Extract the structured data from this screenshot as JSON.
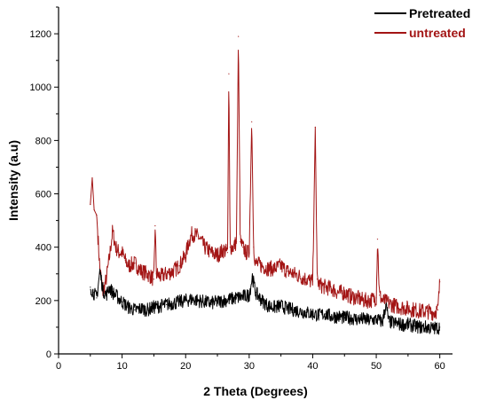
{
  "chart_data": {
    "type": "line",
    "xlabel": "2 Theta (Degrees)",
    "ylabel": "Intensity (a.u)",
    "xlim": [
      0,
      62
    ],
    "ylim": [
      0,
      1300
    ],
    "xticks": [
      0,
      10,
      20,
      30,
      40,
      50,
      60
    ],
    "yticks": [
      0,
      200,
      400,
      600,
      800,
      1000,
      1200
    ],
    "grid": false,
    "legend_position": "top-right",
    "series": [
      {
        "name": "Pretreated",
        "color": "#000000",
        "points": [
          [
            5,
            250
          ],
          [
            5.5,
            230
          ],
          [
            6,
            210
          ],
          [
            6.5,
            310
          ],
          [
            7,
            240
          ],
          [
            7.5,
            220
          ],
          [
            8,
            250
          ],
          [
            8.5,
            230
          ],
          [
            9,
            220
          ],
          [
            10,
            195
          ],
          [
            11,
            175
          ],
          [
            12,
            165
          ],
          [
            13,
            170
          ],
          [
            14,
            165
          ],
          [
            15,
            175
          ],
          [
            16,
            180
          ],
          [
            17,
            185
          ],
          [
            18,
            190
          ],
          [
            19,
            195
          ],
          [
            20,
            200
          ],
          [
            21,
            205
          ],
          [
            22,
            200
          ],
          [
            23,
            195
          ],
          [
            24,
            190
          ],
          [
            25,
            195
          ],
          [
            26,
            200
          ],
          [
            27,
            205
          ],
          [
            28,
            210
          ],
          [
            29,
            215
          ],
          [
            30,
            220
          ],
          [
            30.5,
            290
          ],
          [
            31,
            230
          ],
          [
            32,
            200
          ],
          [
            33,
            180
          ],
          [
            34,
            175
          ],
          [
            35,
            180
          ],
          [
            36,
            170
          ],
          [
            37,
            165
          ],
          [
            38,
            160
          ],
          [
            39,
            155
          ],
          [
            40,
            150
          ],
          [
            41,
            145
          ],
          [
            42,
            150
          ],
          [
            43,
            140
          ],
          [
            44,
            140
          ],
          [
            45,
            135
          ],
          [
            46,
            135
          ],
          [
            47,
            130
          ],
          [
            48,
            130
          ],
          [
            49,
            125
          ],
          [
            50,
            130
          ],
          [
            51,
            120
          ],
          [
            51.5,
            185
          ],
          [
            52,
            120
          ],
          [
            53,
            115
          ],
          [
            54,
            110
          ],
          [
            55,
            110
          ],
          [
            56,
            105
          ],
          [
            57,
            100
          ],
          [
            58,
            100
          ],
          [
            59,
            95
          ],
          [
            60,
            100
          ]
        ]
      },
      {
        "name": "untreated",
        "color": "#a31515",
        "points": [
          [
            5,
            560
          ],
          [
            5.3,
            660
          ],
          [
            5.6,
            540
          ],
          [
            6,
            520
          ],
          [
            6.5,
            320
          ],
          [
            7,
            230
          ],
          [
            7.5,
            280
          ],
          [
            8,
            360
          ],
          [
            8.5,
            460
          ],
          [
            9,
            400
          ],
          [
            9.5,
            380
          ],
          [
            10,
            380
          ],
          [
            10.5,
            350
          ],
          [
            11,
            330
          ],
          [
            12,
            340
          ],
          [
            13,
            310
          ],
          [
            14,
            300
          ],
          [
            15,
            280
          ],
          [
            15.2,
            480
          ],
          [
            15.4,
            300
          ],
          [
            16,
            290
          ],
          [
            17,
            300
          ],
          [
            18,
            310
          ],
          [
            19,
            330
          ],
          [
            20,
            370
          ],
          [
            20.5,
            420
          ],
          [
            21,
            450
          ],
          [
            22,
            440
          ],
          [
            23,
            400
          ],
          [
            24,
            380
          ],
          [
            25,
            370
          ],
          [
            26,
            390
          ],
          [
            26.6,
            380
          ],
          [
            26.8,
            1050
          ],
          [
            27,
            400
          ],
          [
            27.5,
            400
          ],
          [
            28,
            420
          ],
          [
            28.3,
            1190
          ],
          [
            28.6,
            420
          ],
          [
            29,
            400
          ],
          [
            29.5,
            380
          ],
          [
            30,
            380
          ],
          [
            30.4,
            870
          ],
          [
            30.7,
            400
          ],
          [
            31,
            340
          ],
          [
            32,
            330
          ],
          [
            33,
            320
          ],
          [
            34,
            320
          ],
          [
            35,
            330
          ],
          [
            36,
            310
          ],
          [
            37,
            300
          ],
          [
            38,
            290
          ],
          [
            39,
            280
          ],
          [
            40,
            270
          ],
          [
            40.4,
            850
          ],
          [
            40.7,
            280
          ],
          [
            41,
            260
          ],
          [
            42,
            250
          ],
          [
            43,
            245
          ],
          [
            44,
            230
          ],
          [
            45,
            230
          ],
          [
            46,
            215
          ],
          [
            47,
            210
          ],
          [
            48,
            200
          ],
          [
            49,
            200
          ],
          [
            50,
            210
          ],
          [
            50.2,
            430
          ],
          [
            50.5,
            220
          ],
          [
            51,
            200
          ],
          [
            52,
            190
          ],
          [
            53,
            180
          ],
          [
            54,
            175
          ],
          [
            55,
            170
          ],
          [
            56,
            165
          ],
          [
            57,
            160
          ],
          [
            58,
            160
          ],
          [
            59,
            155
          ],
          [
            59.7,
            165
          ],
          [
            60,
            270
          ]
        ]
      }
    ]
  }
}
